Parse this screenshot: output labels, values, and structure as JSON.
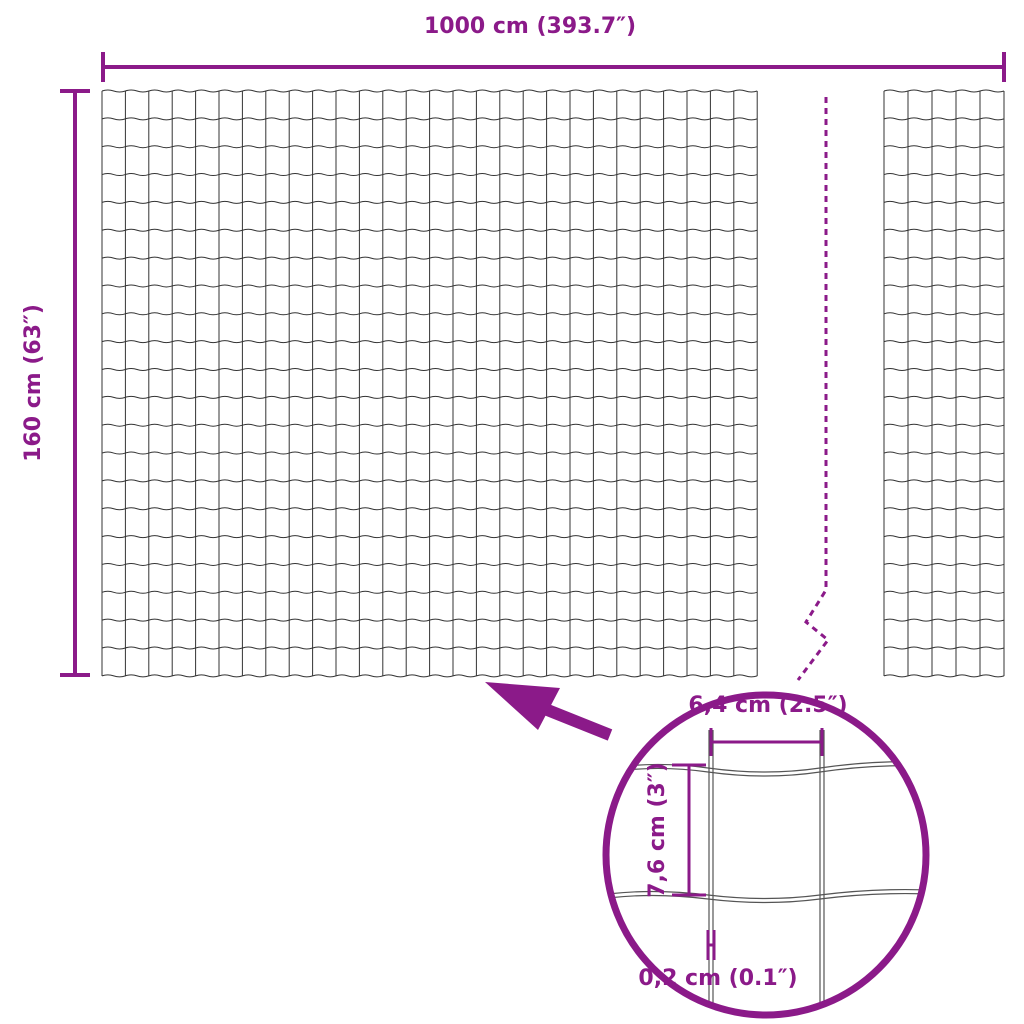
{
  "labels": {
    "width": "1000 cm (393.7″)",
    "height": "160 cm (63″)",
    "mesh_width": "6,4 cm (2.5″)",
    "mesh_height": "7,6 cm (3″)",
    "wire_thickness": "0,2 cm (0.1″)"
  },
  "colors": {
    "accent": "#8b1a89",
    "wire": "#333333"
  }
}
